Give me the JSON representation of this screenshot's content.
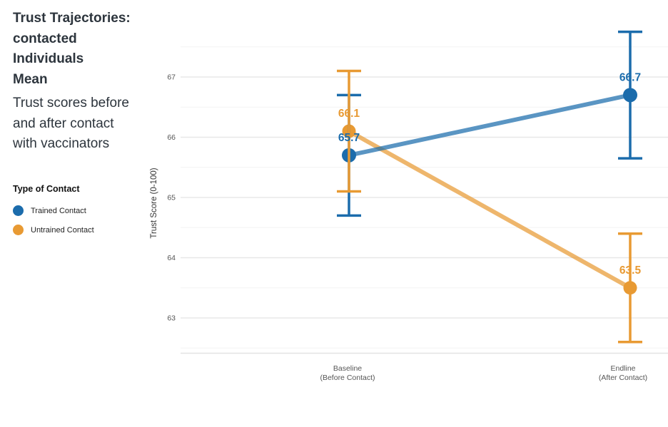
{
  "header": {
    "title_lines": [
      "Trust Trajectories:",
      "contacted",
      "Individuals",
      "Mean"
    ],
    "subtitle_lines": [
      "Trust scores before",
      "and after contact",
      "with vaccinators"
    ]
  },
  "legend": {
    "title": "Type of Contact",
    "items": [
      {
        "label": "Trained Contact",
        "color": "#1b6cac"
      },
      {
        "label": "Untrained Contact",
        "color": "#e89a33"
      }
    ]
  },
  "chart_data": {
    "type": "line",
    "title": "Trust Trajectories: contacted Individuals Mean",
    "subtitle": "Trust scores before and after contact with vaccinators",
    "xlabel": "",
    "ylabel": "Trust Score (0-100)",
    "categories": [
      "Baseline (Before Contact)",
      "Endline (After Contact)"
    ],
    "x_tick_lines": [
      [
        "Baseline",
        "(Before Contact)"
      ],
      [
        "Endline",
        "(After Contact)"
      ]
    ],
    "yticks": [
      63,
      64,
      65,
      66,
      67
    ],
    "minor_yticks": [
      62.5,
      63.5,
      64.5,
      65.5,
      66.5,
      67.5
    ],
    "ylim": [
      62.4,
      68.1
    ],
    "grid": "horizontal-only",
    "legend_position": "left",
    "series": [
      {
        "name": "Trained Contact",
        "color": "#1b6cac",
        "values": [
          65.7,
          66.7
        ],
        "ci_lower": [
          64.7,
          65.65
        ],
        "ci_upper": [
          66.7,
          67.75
        ],
        "point_labels": [
          "65.7",
          "66.7"
        ]
      },
      {
        "name": "Untrained Contact",
        "color": "#e89a33",
        "values": [
          66.1,
          63.5
        ],
        "ci_lower": [
          65.1,
          62.6
        ],
        "ci_upper": [
          67.1,
          64.4
        ],
        "point_labels": [
          "66.1",
          "63.5"
        ]
      }
    ]
  }
}
